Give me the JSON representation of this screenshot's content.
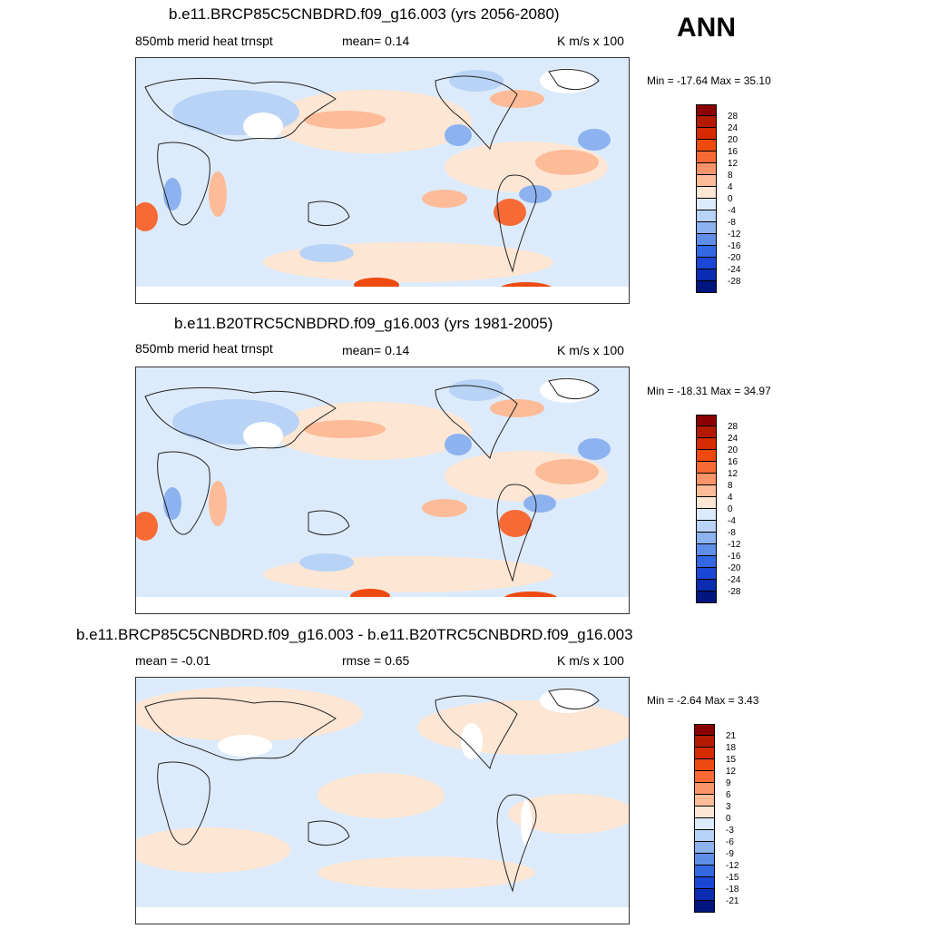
{
  "season_label": "ANN",
  "panels": [
    {
      "title": "b.e11.BRCP85C5CNBDRD.f09_g16.003 (yrs 2056-2080)",
      "left_label": "850mb merid heat trnspt",
      "center_label": "mean=   0.14",
      "units": "K m/s x 100",
      "minmax": "Min = -17.64 Max =  35.10",
      "colorbar_labels": [
        "28",
        "24",
        "20",
        "16",
        "12",
        "8",
        "4",
        "0",
        "-4",
        "-8",
        "-12",
        "-16",
        "-20",
        "-24",
        "-28"
      ]
    },
    {
      "title": "b.e11.B20TRC5CNBDRD.f09_g16.003 (yrs 1981-2005)",
      "left_label": "850mb merid heat trnspt",
      "center_label": "mean=   0.14",
      "units": "K m/s x 100",
      "minmax": "Min = -18.31 Max =  34.97",
      "colorbar_labels": [
        "28",
        "24",
        "20",
        "16",
        "12",
        "8",
        "4",
        "0",
        "-4",
        "-8",
        "-12",
        "-16",
        "-20",
        "-24",
        "-28"
      ]
    },
    {
      "title": "b.e11.BRCP85C5CNBDRD.f09_g16.003 - b.e11.B20TRC5CNBDRD.f09_g16.003",
      "left_label": "mean =  -0.01",
      "center_label": "rmse =   0.65",
      "units": "K m/s x 100",
      "minmax": "Min =  -2.64 Max =   3.43",
      "colorbar_labels": [
        "21",
        "18",
        "15",
        "12",
        "9",
        "6",
        "3",
        "0",
        "-3",
        "-6",
        "-9",
        "-12",
        "-15",
        "-18",
        "-21"
      ]
    }
  ],
  "colorbar_colors": [
    "#8b0000",
    "#b31a00",
    "#d62a00",
    "#ee4a10",
    "#f76a36",
    "#fb9468",
    "#fdbb98",
    "#fde6d4",
    "#dcebfb",
    "#b8d3f6",
    "#8cb2ef",
    "#5f8ee8",
    "#3268e2",
    "#1a47d4",
    "#0a2cb0",
    "#00157e"
  ]
}
